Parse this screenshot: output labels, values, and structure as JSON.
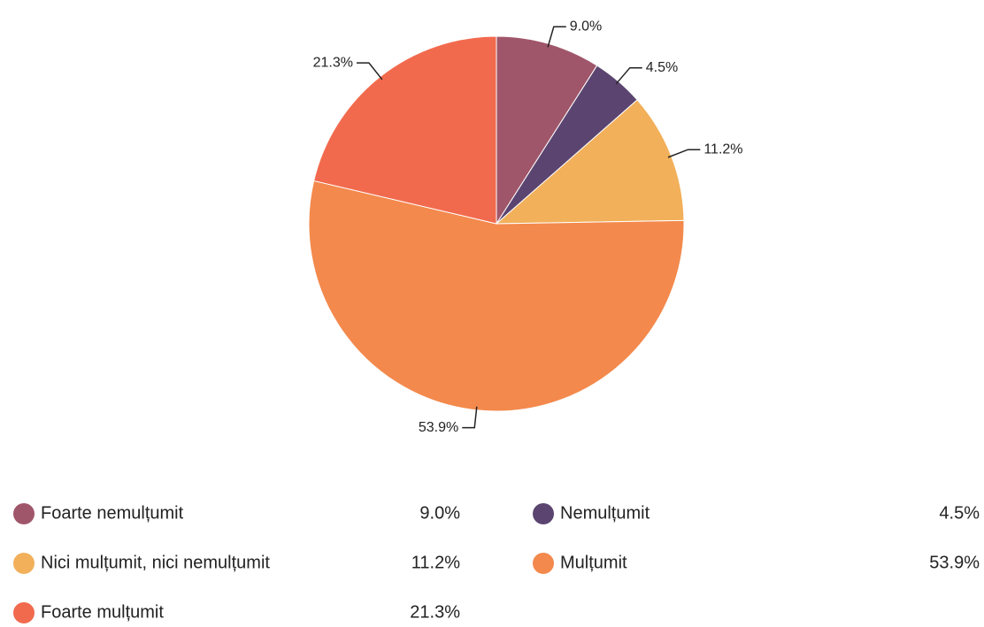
{
  "chart_data": {
    "type": "pie",
    "categories": [
      "Foarte nemulțumit",
      "Nemulțumit",
      "Nici mulțumit, nici nemulțumit",
      "Mulțumit",
      "Foarte mulțumit"
    ],
    "values": [
      9.0,
      4.5,
      11.2,
      53.9,
      21.3
    ],
    "value_labels": [
      "9.0%",
      "4.5%",
      "11.2%",
      "53.9%",
      "21.3%"
    ],
    "colors": [
      "#a0566a",
      "#5b4570",
      "#f2b05a",
      "#f3894c",
      "#f26a4e"
    ]
  }
}
